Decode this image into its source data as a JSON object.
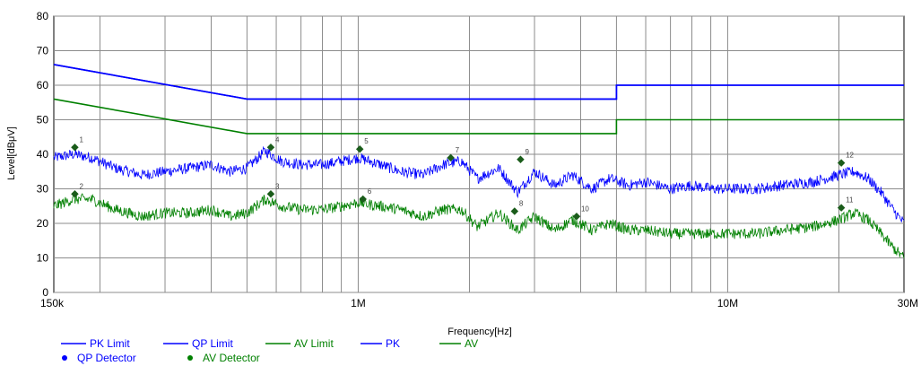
{
  "chart_data": {
    "type": "line",
    "title": "",
    "xlabel": "Frequency[Hz]",
    "ylabel": "Level[dBμV]",
    "x_scale": "log",
    "xlim": [
      150000,
      30000000
    ],
    "ylim": [
      0,
      80
    ],
    "grid": true,
    "legend_position": "bottom",
    "x_ticks": [
      {
        "value": 150000,
        "label": "150k"
      },
      {
        "value": 1000000,
        "label": "1M"
      },
      {
        "value": 10000000,
        "label": "10M"
      },
      {
        "value": 30000000,
        "label": "30M"
      }
    ],
    "y_ticks": [
      0,
      10,
      20,
      30,
      40,
      50,
      60,
      70,
      80
    ],
    "series": [
      {
        "name": "PK Limit",
        "kind": "limit",
        "color": "#0000ff",
        "x": [
          150000,
          500000,
          500000,
          5000000,
          5000000,
          30000000
        ],
        "y": [
          66,
          56,
          56,
          56,
          60,
          60
        ]
      },
      {
        "name": "QP Limit",
        "kind": "limit",
        "color": "#0000ff",
        "x": [
          150000,
          500000,
          500000,
          5000000,
          5000000,
          30000000
        ],
        "y": [
          66,
          56,
          56,
          56,
          60,
          60
        ]
      },
      {
        "name": "AV Limit",
        "kind": "limit",
        "color": "#008000",
        "x": [
          150000,
          500000,
          500000,
          5000000,
          5000000,
          30000000
        ],
        "y": [
          56,
          46,
          46,
          46,
          50,
          50
        ]
      },
      {
        "name": "PK",
        "kind": "trace",
        "color": "#0000ff",
        "x": [
          150000,
          170000,
          190000,
          220000,
          260000,
          300000,
          350000,
          400000,
          450000,
          500000,
          560000,
          620000,
          700000,
          800000,
          900000,
          1000000,
          1150000,
          1300000,
          1500000,
          1700000,
          1900000,
          2100000,
          2400000,
          2700000,
          3000000,
          3400000,
          3800000,
          4300000,
          4800000,
          5400000,
          6000000,
          7000000,
          8000000,
          9000000,
          10000000,
          12000000,
          14000000,
          17000000,
          20000000,
          22000000,
          24000000,
          26000000,
          28000000,
          30000000
        ],
        "y": [
          39,
          40,
          39,
          36,
          34,
          35,
          36,
          37,
          35,
          36,
          41,
          38,
          37,
          37,
          38,
          39,
          37,
          35,
          34,
          37,
          38,
          33,
          36,
          29,
          35,
          31,
          34,
          30,
          33,
          31,
          32,
          30,
          31,
          30,
          30,
          30,
          31,
          32,
          34,
          35,
          33,
          29,
          24,
          20
        ]
      },
      {
        "name": "AV",
        "kind": "trace",
        "color": "#008000",
        "x": [
          150000,
          170000,
          190000,
          220000,
          260000,
          300000,
          350000,
          400000,
          450000,
          500000,
          560000,
          620000,
          700000,
          800000,
          900000,
          1000000,
          1150000,
          1300000,
          1500000,
          1700000,
          1900000,
          2100000,
          2400000,
          2700000,
          3000000,
          3400000,
          3800000,
          4300000,
          4800000,
          5400000,
          6000000,
          7000000,
          8000000,
          9000000,
          10000000,
          12000000,
          14000000,
          17000000,
          20000000,
          22000000,
          24000000,
          26000000,
          28000000,
          30000000
        ],
        "y": [
          25,
          27,
          27,
          24,
          22,
          23,
          23,
          24,
          22,
          23,
          27,
          25,
          24,
          24,
          25,
          26,
          25,
          24,
          22,
          24,
          24,
          19,
          23,
          18,
          22,
          18,
          21,
          18,
          20,
          18,
          18,
          17,
          17,
          17,
          17,
          17,
          18,
          19,
          21,
          23,
          21,
          17,
          13,
          10
        ]
      }
    ],
    "markers": [
      {
        "label": "1",
        "detector": "QP Detector",
        "color": "#1a5c1a",
        "x": 171000,
        "y": 42
      },
      {
        "label": "2",
        "detector": "AV Detector",
        "color": "#1a5c1a",
        "x": 171000,
        "y": 28.5
      },
      {
        "label": "3",
        "detector": "AV Detector",
        "color": "#1a5c1a",
        "x": 580000,
        "y": 28.5
      },
      {
        "label": "4",
        "detector": "QP Detector",
        "color": "#1a5c1a",
        "x": 580000,
        "y": 42
      },
      {
        "label": "5",
        "detector": "QP Detector",
        "color": "#1a5c1a",
        "x": 1010000,
        "y": 41.5
      },
      {
        "label": "6",
        "detector": "AV Detector",
        "color": "#1a5c1a",
        "x": 1030000,
        "y": 27
      },
      {
        "label": "7",
        "detector": "QP Detector",
        "color": "#1a5c1a",
        "x": 1780000,
        "y": 39
      },
      {
        "label": "8",
        "detector": "AV Detector",
        "color": "#1a5c1a",
        "x": 2650000,
        "y": 23.5
      },
      {
        "label": "9",
        "detector": "QP Detector",
        "color": "#1a5c1a",
        "x": 2750000,
        "y": 38.5
      },
      {
        "label": "10",
        "detector": "AV Detector",
        "color": "#1a5c1a",
        "x": 3900000,
        "y": 22
      },
      {
        "label": "11",
        "detector": "AV Detector",
        "color": "#1a5c1a",
        "x": 20300000,
        "y": 24.5
      },
      {
        "label": "12",
        "detector": "QP Detector",
        "color": "#1a5c1a",
        "x": 20300000,
        "y": 37.5
      }
    ],
    "legend": [
      {
        "label": "PK Limit",
        "symbol": "line",
        "color": "#0000ff"
      },
      {
        "label": "QP Limit",
        "symbol": "line",
        "color": "#0000ff"
      },
      {
        "label": "AV Limit",
        "symbol": "line",
        "color": "#008000"
      },
      {
        "label": "PK",
        "symbol": "line",
        "color": "#0000ff"
      },
      {
        "label": "AV",
        "symbol": "line",
        "color": "#008000"
      },
      {
        "label": "QP Detector",
        "symbol": "dot",
        "color": "#0000ff"
      },
      {
        "label": "AV Detector",
        "symbol": "dot",
        "color": "#008000"
      }
    ]
  }
}
